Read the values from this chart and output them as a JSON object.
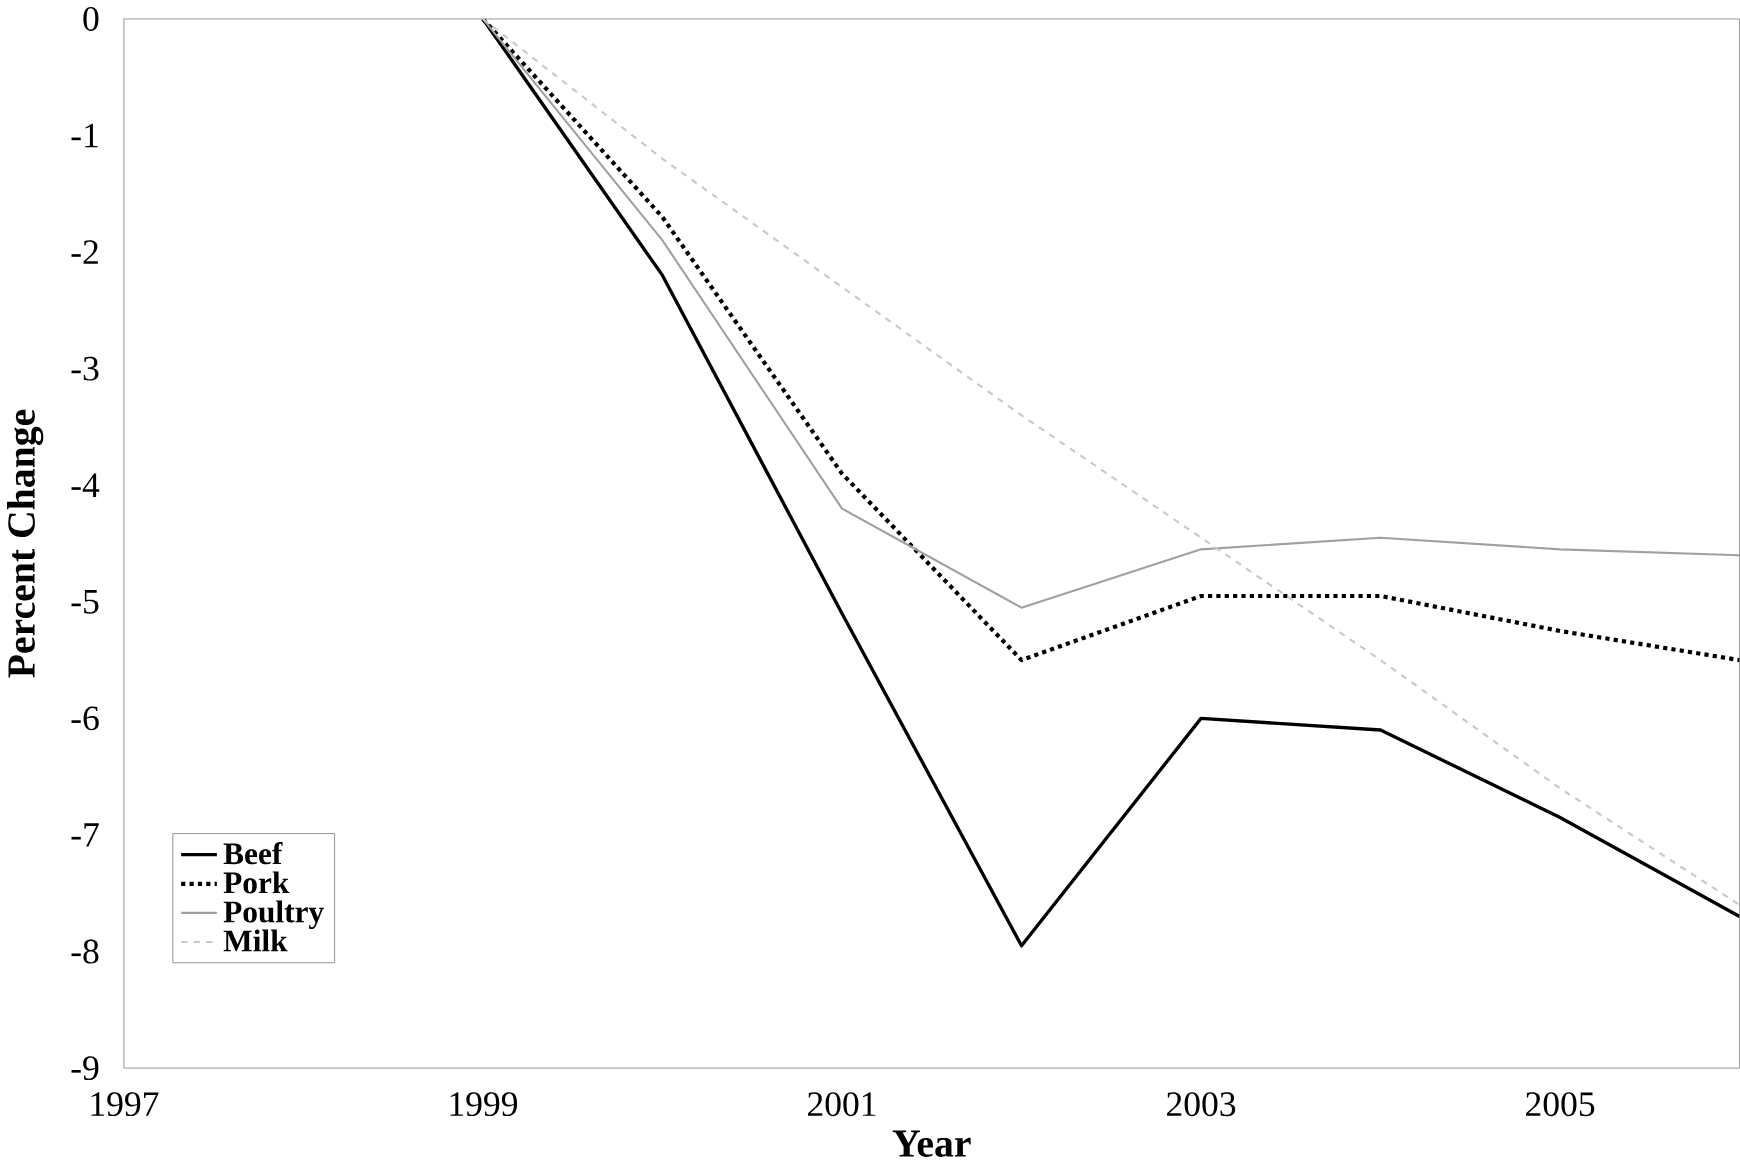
{
  "chart_data": {
    "type": "line",
    "xlabel": "Year",
    "ylabel": "Percent Change",
    "x": [
      1999,
      2000,
      2001,
      2002,
      2003,
      2004,
      2005,
      2006
    ],
    "series": [
      {
        "name": "Beef",
        "color": "#000000",
        "line_style": "solid",
        "values": [
          0,
          -2.2,
          -5.1,
          -7.95,
          -6.0,
          -6.1,
          -6.85,
          -7.7
        ]
      },
      {
        "name": "Pork",
        "color": "#000000",
        "line_style": "dotted",
        "values": [
          0,
          -1.7,
          -3.9,
          -5.5,
          -4.95,
          -4.95,
          -5.25,
          -5.5
        ]
      },
      {
        "name": "Poultry",
        "color": "#a0a0a0",
        "line_style": "solid",
        "values": [
          0,
          -1.9,
          -4.2,
          -5.05,
          -4.55,
          -4.45,
          -4.55,
          -4.6
        ]
      },
      {
        "name": "Milk",
        "color": "#c8c8c8",
        "line_style": "dashed",
        "values": [
          0,
          -1.2,
          -2.3,
          -3.4,
          -4.45,
          -5.5,
          -6.6,
          -7.6
        ]
      }
    ],
    "xlim": [
      1997,
      2006
    ],
    "xticks": [
      1997,
      1999,
      2001,
      2003,
      2005
    ],
    "ylim": [
      -9,
      0
    ],
    "yticks": [
      -9,
      -8,
      -7,
      -6,
      -5,
      -4,
      -3,
      -2,
      -1,
      0
    ],
    "legend": "bottom left",
    "grid": false,
    "marker": "none"
  }
}
